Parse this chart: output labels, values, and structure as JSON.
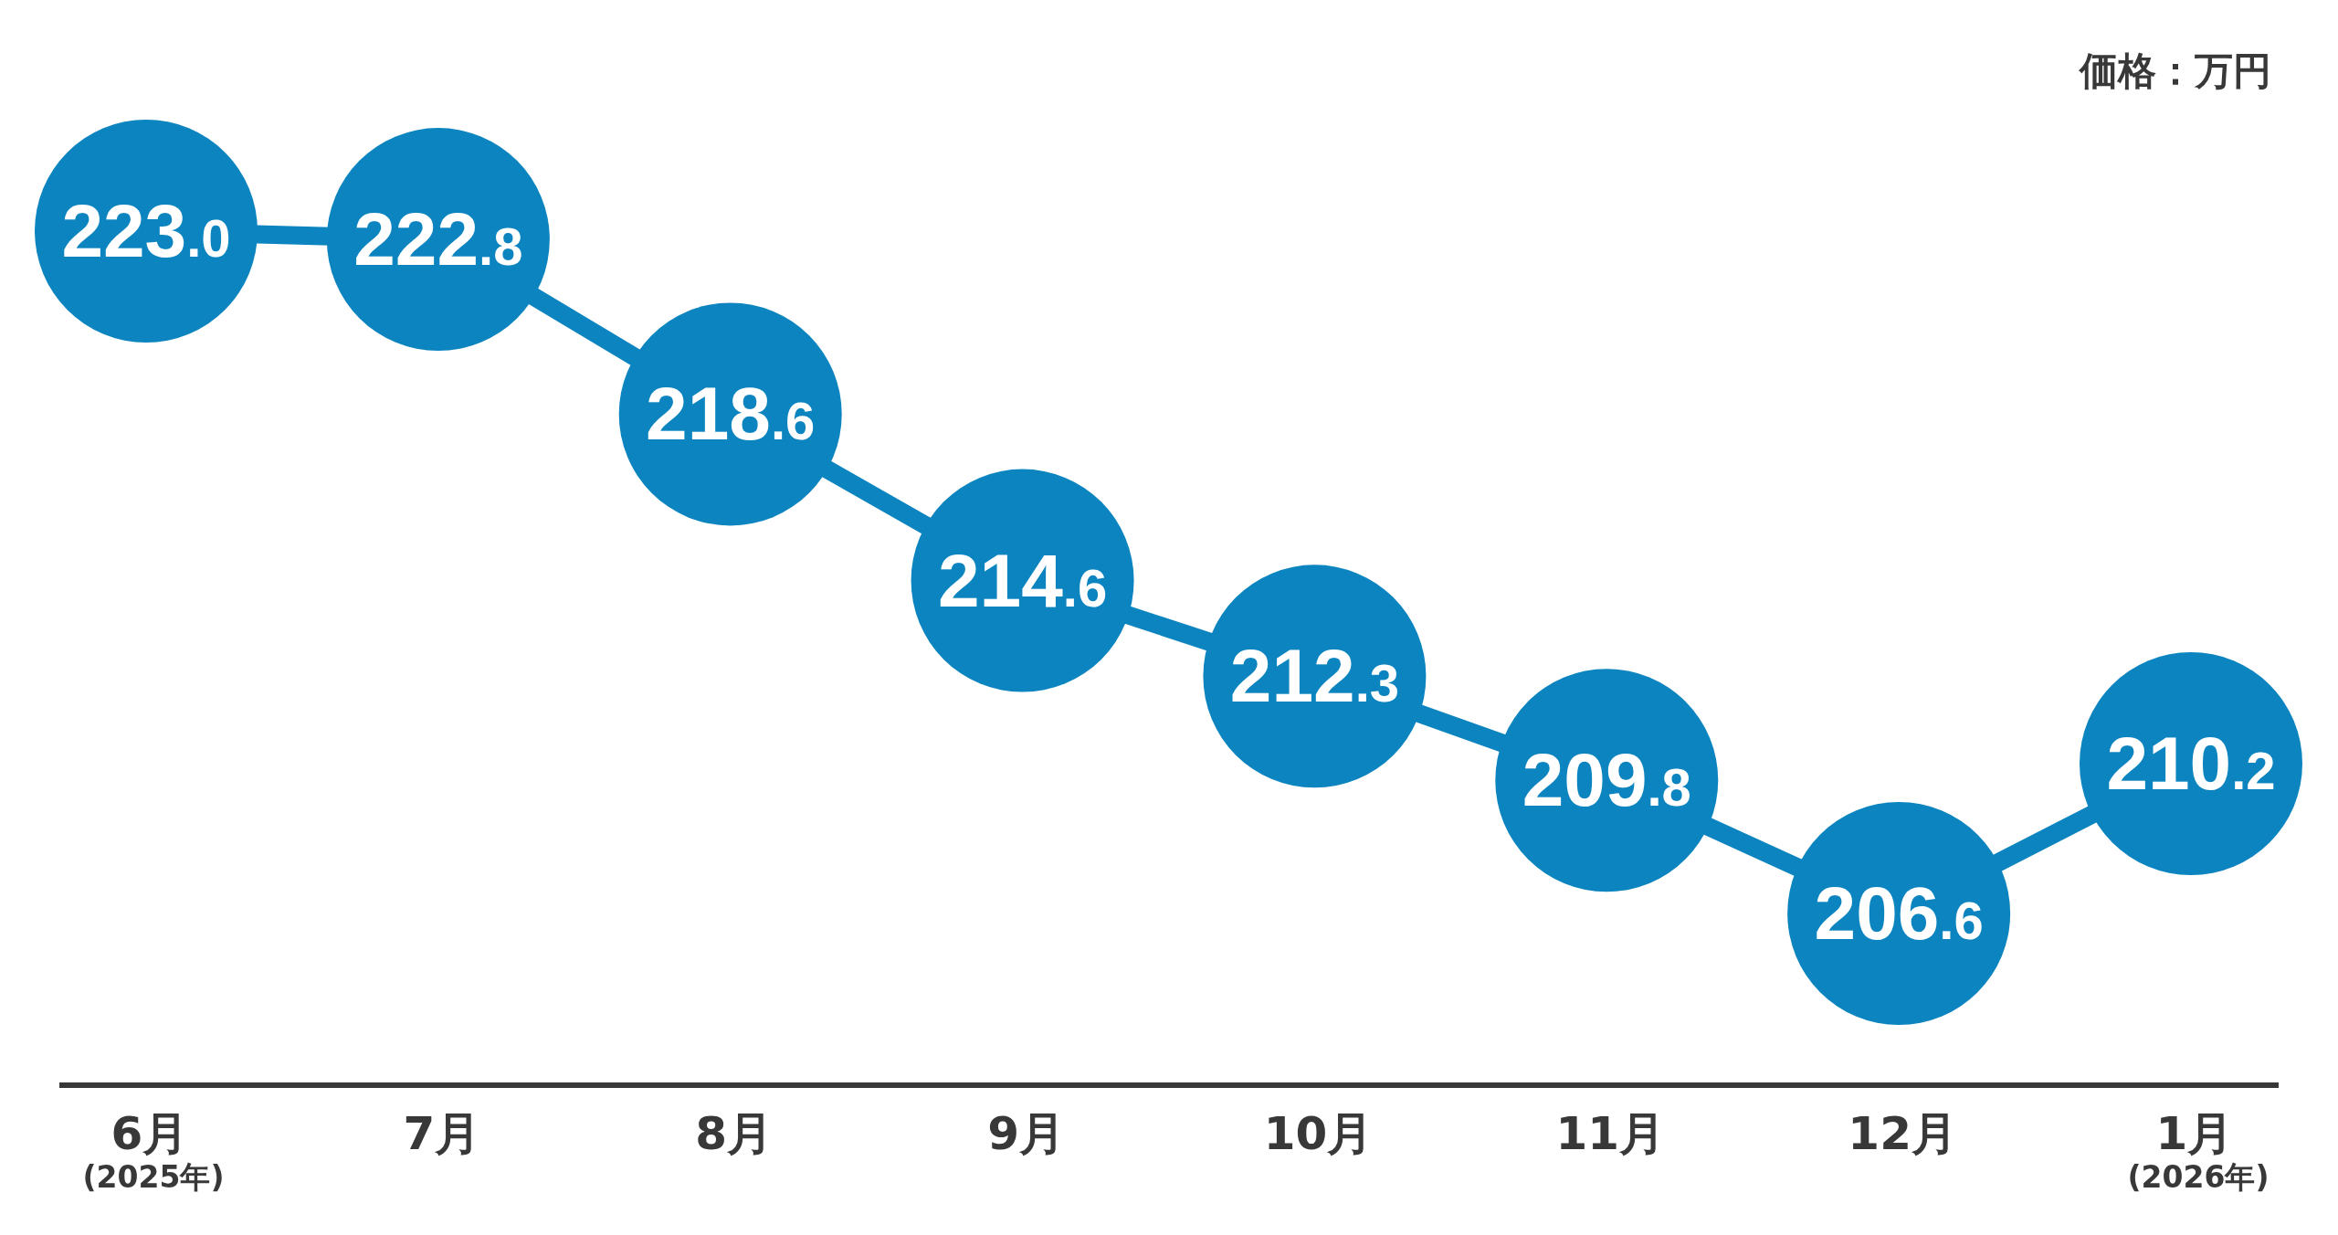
{
  "chart_data": {
    "type": "bubble",
    "categories": [
      "6月\n(2025年)",
      "7月",
      "8月",
      "9月",
      "10月",
      "11月",
      "12月",
      "1月\n(2026年)"
    ],
    "values": [
      223.0,
      222.8,
      218.6,
      214.6,
      212.3,
      209.8,
      206.6,
      210.2
    ],
    "sizes": [
      1,
      1,
      1,
      1,
      1,
      1,
      1,
      1
    ],
    "value_labels": [
      "223.0",
      "222.8",
      "218.6",
      "214.6",
      "212.3",
      "209.8",
      "206.6",
      "210.2"
    ],
    "color": "#0b84bf",
    "line_style": "solid",
    "annotations": [
      "価格：万円"
    ]
  }
}
